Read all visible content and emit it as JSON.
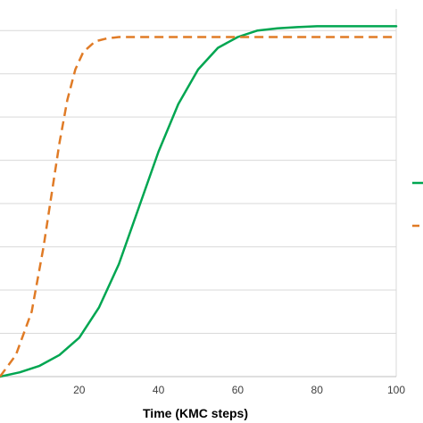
{
  "chart_data": {
    "type": "line",
    "title": "",
    "xlabel": "Time (KMC steps)",
    "ylabel": "",
    "xlim": [
      0,
      100
    ],
    "ylim": [
      0,
      8.5
    ],
    "x_ticks": [
      20,
      40,
      60,
      80,
      100
    ],
    "grid": "horizontal",
    "legend": "right",
    "series": [
      {
        "color": "#00A651",
        "style": "solid",
        "x": [
          0,
          5,
          10,
          15,
          20,
          25,
          30,
          35,
          40,
          45,
          50,
          55,
          60,
          65,
          70,
          75,
          80,
          85,
          90,
          95,
          100
        ],
        "y": [
          0.0,
          0.1,
          0.25,
          0.5,
          0.9,
          1.6,
          2.6,
          3.9,
          5.2,
          6.3,
          7.1,
          7.6,
          7.85,
          8.0,
          8.05,
          8.08,
          8.1,
          8.1,
          8.1,
          8.1,
          8.1
        ]
      },
      {
        "color": "#E07B26",
        "style": "dashed",
        "x": [
          0,
          4,
          8,
          11,
          13,
          15,
          17,
          19,
          21,
          24,
          27,
          30,
          35,
          40,
          50,
          60,
          70,
          80,
          90,
          100
        ],
        "y": [
          0.0,
          0.5,
          1.5,
          3.0,
          4.2,
          5.4,
          6.4,
          7.1,
          7.5,
          7.75,
          7.82,
          7.85,
          7.85,
          7.85,
          7.85,
          7.85,
          7.85,
          7.85,
          7.85,
          7.85
        ]
      }
    ]
  }
}
